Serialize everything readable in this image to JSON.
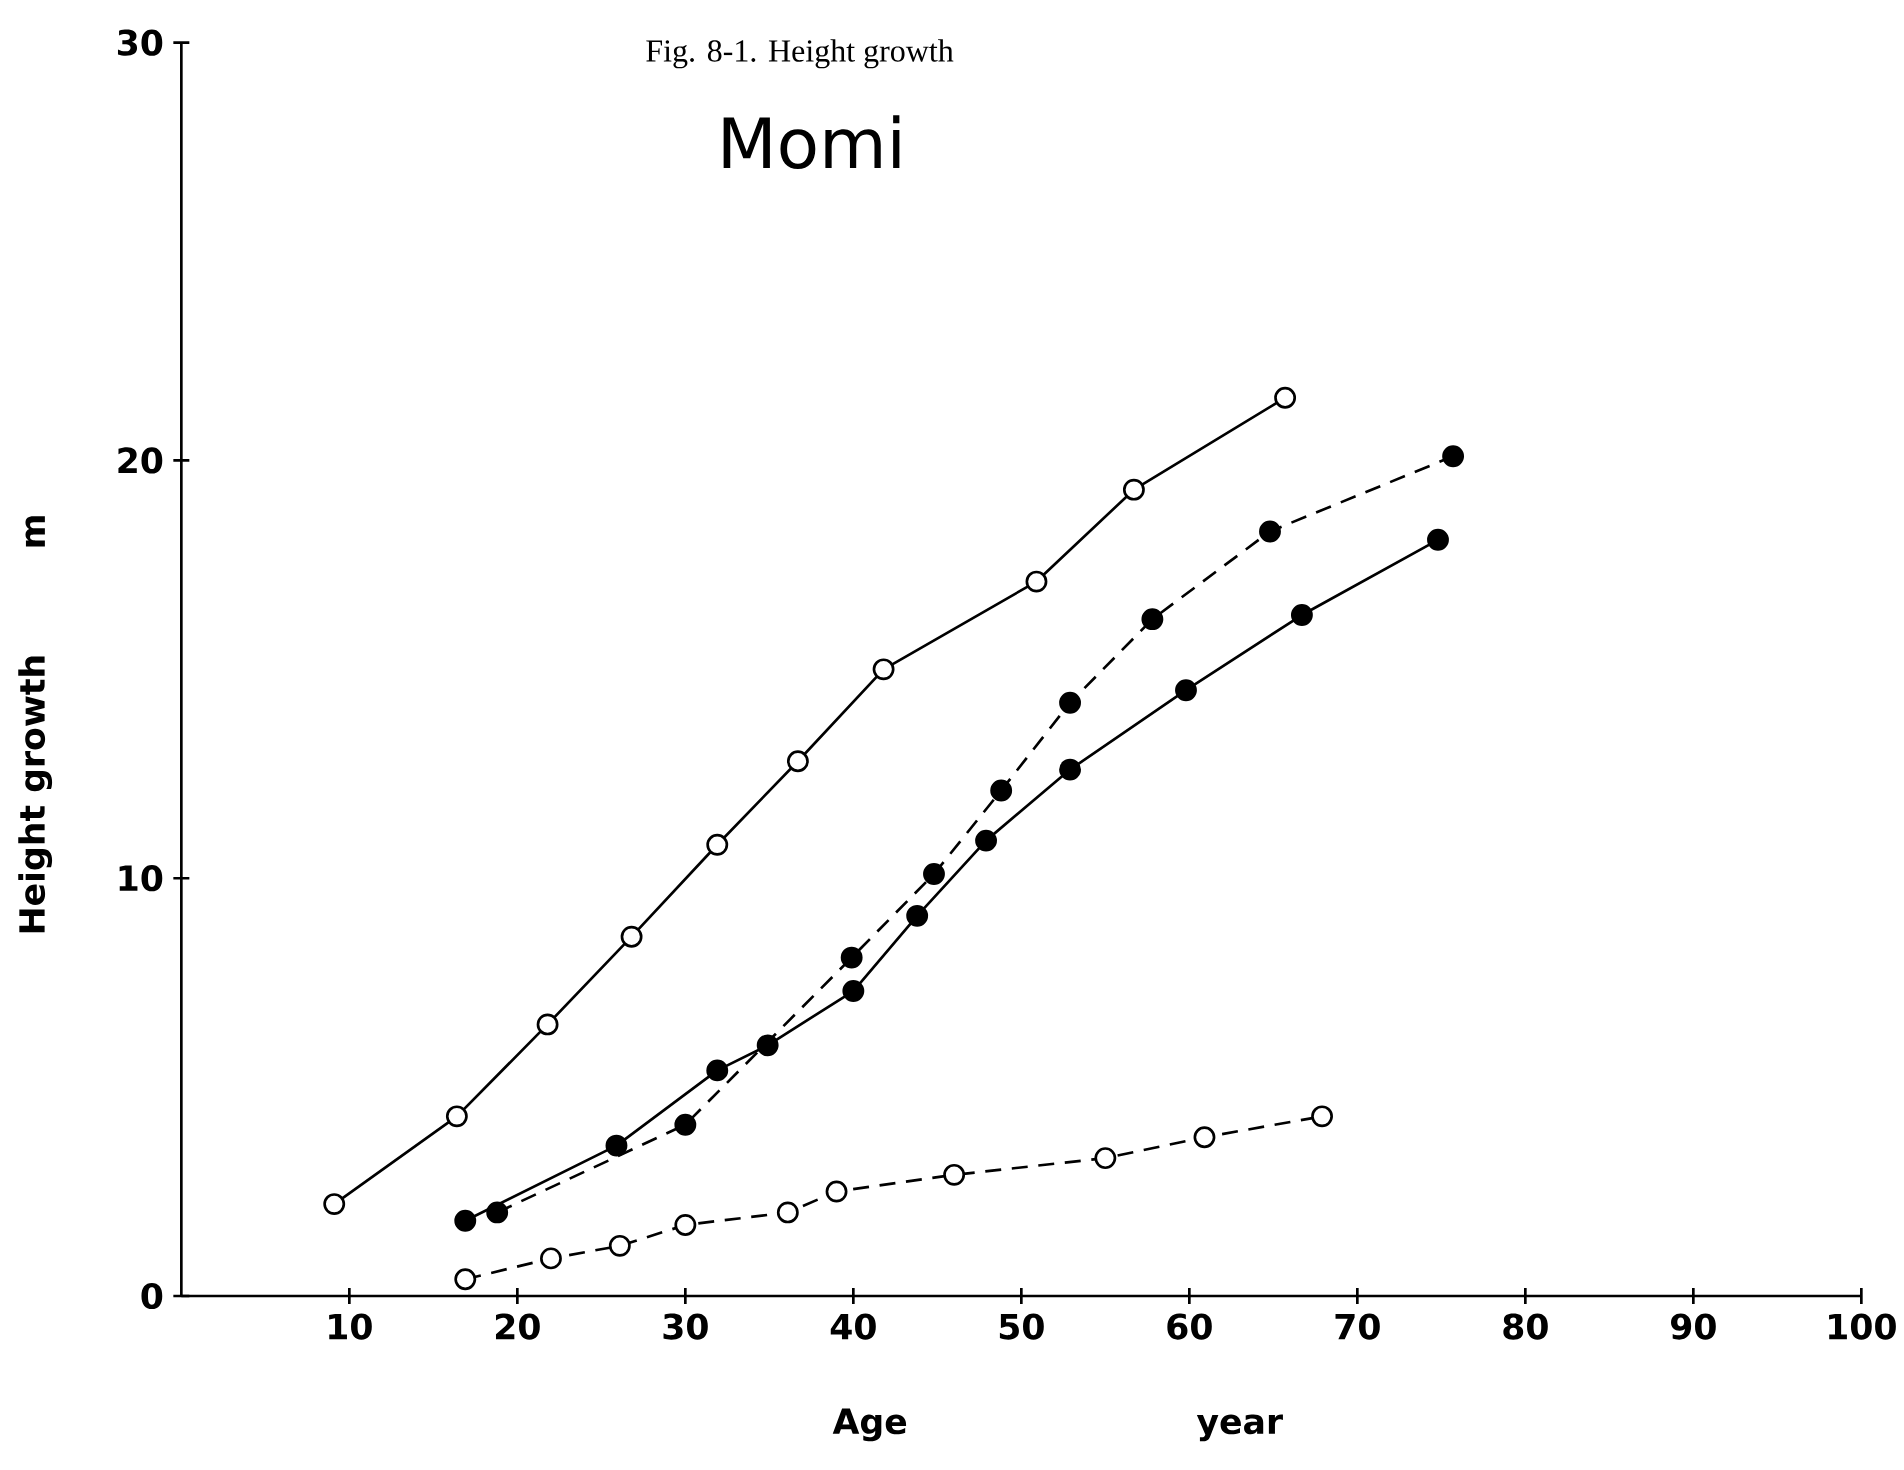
{
  "chart_data": {
    "type": "line",
    "title": "Fig. 8-1.  Height growth",
    "subtitle": "Momi",
    "xlabel": "Age",
    "ylabel": "Height growth",
    "annotations": [
      "m",
      "year"
    ],
    "xlim": [
      0,
      100
    ],
    "ylim": [
      0,
      30
    ],
    "xticks": [
      10,
      20,
      30,
      40,
      50,
      60,
      70,
      80,
      90,
      100
    ],
    "yticks": [
      0,
      10,
      20,
      30
    ],
    "grid": false,
    "marker": "circle",
    "series": [
      {
        "color": "#ffffff",
        "line_style": "solid",
        "x": [
          9.1,
          16.4,
          21.8,
          26.8,
          31.9,
          36.7,
          41.8,
          50.9,
          56.7,
          65.7
        ],
        "values": [
          2.2,
          4.3,
          6.5,
          8.6,
          10.8,
          12.8,
          15.0,
          17.1,
          19.3,
          21.5
        ]
      },
      {
        "color": "#000000",
        "line_style": "solid",
        "x": [
          16.9,
          25.9,
          31.9,
          34.9,
          40.0,
          43.8,
          47.9,
          52.9,
          59.8,
          66.7,
          74.8
        ],
        "values": [
          1.8,
          3.6,
          5.4,
          6.0,
          7.3,
          9.1,
          10.9,
          12.6,
          14.5,
          16.3,
          18.1
        ]
      },
      {
        "color": "#000000",
        "line_style": "dashed",
        "x": [
          18.8,
          30.0,
          39.9,
          44.8,
          48.8,
          52.9,
          57.8,
          64.8,
          75.7
        ],
        "values": [
          2.0,
          4.1,
          8.1,
          10.1,
          12.1,
          14.2,
          16.2,
          18.3,
          20.1
        ]
      },
      {
        "color": "#ffffff",
        "line_style": "dashed",
        "x": [
          16.9,
          22.0,
          26.1,
          30.0,
          36.1,
          39.0,
          46.0,
          55.0,
          60.9,
          67.9
        ],
        "values": [
          0.4,
          0.9,
          1.2,
          1.7,
          2.0,
          2.5,
          2.9,
          3.3,
          3.8,
          4.3
        ]
      }
    ]
  }
}
